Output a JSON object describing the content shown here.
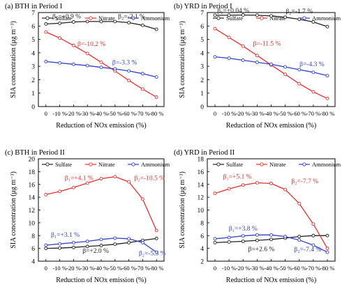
{
  "chart_data": [
    {
      "type": "line",
      "title": "(a) BTH in Period I",
      "xlabel": "Reduction of NOx emission (%)",
      "ylabel": "SIA concentration (μg m⁻³)",
      "categories": [
        "0",
        "-10 %",
        "-20 %",
        "-30 %",
        "-40 %",
        "-50 %",
        "-60 %",
        "-70 %",
        "-80 %"
      ],
      "ylim": [
        0,
        7
      ],
      "yticks": [
        0,
        1,
        2,
        3,
        4,
        5,
        6,
        7
      ],
      "legend": "top",
      "series": [
        {
          "name": "Sulfate",
          "color": "#222222",
          "values": [
            6.15,
            6.2,
            6.3,
            6.33,
            6.33,
            6.33,
            6.25,
            6.05,
            5.75
          ]
        },
        {
          "name": "Nitrate",
          "color": "#e8302c",
          "values": [
            5.55,
            5.1,
            4.55,
            3.95,
            3.3,
            2.65,
            1.95,
            1.3,
            0.7
          ]
        },
        {
          "name": "Ammonium",
          "color": "#3040d0",
          "values": [
            3.35,
            3.25,
            3.15,
            3.05,
            2.92,
            2.8,
            2.65,
            2.45,
            2.2
          ]
        }
      ],
      "annotations": [
        {
          "text": "β₁=+0.9 %",
          "color": "#222222",
          "x": 1.5,
          "y": 6.55
        },
        {
          "text": "β₂=-2.1 %",
          "color": "#222222",
          "x": 6.2,
          "y": 6.55
        },
        {
          "text": "β=-10.2 %",
          "color": "#e8302c",
          "x": 3.3,
          "y": 4.5
        },
        {
          "text": "β=-3.3 %",
          "color": "#3040d0",
          "x": 5.7,
          "y": 3.15
        }
      ]
    },
    {
      "type": "line",
      "title": "(b) YRD in Period I",
      "xlabel": "Reduction of NOx emission (%)",
      "ylabel": "SIA concentration (μg m⁻³)",
      "categories": [
        "0",
        "-10 %",
        "-20 %",
        "-30 %",
        "-40 %",
        "-50 %",
        "-60 %",
        "-70 %",
        "-80 %"
      ],
      "ylim": [
        0,
        7
      ],
      "yticks": [
        0,
        1,
        2,
        3,
        4,
        5,
        6,
        7
      ],
      "legend": "top",
      "series": [
        {
          "name": "Sulfate",
          "color": "#222222",
          "values": [
            6.8,
            6.8,
            6.82,
            6.8,
            6.75,
            6.65,
            6.5,
            6.3,
            5.95
          ]
        },
        {
          "name": "Nitrate",
          "color": "#e8302c",
          "values": [
            5.8,
            5.15,
            4.5,
            3.8,
            3.1,
            2.4,
            1.7,
            1.1,
            0.6
          ]
        },
        {
          "name": "Ammonium",
          "color": "#3040d0",
          "values": [
            3.7,
            3.6,
            3.45,
            3.3,
            3.15,
            2.95,
            2.75,
            2.55,
            2.3
          ]
        }
      ],
      "annotations": [
        {
          "text": "β₁=+0.04 %",
          "color": "#222222",
          "x": 1.3,
          "y": 7.0
        },
        {
          "text": "β₂=-1.7 %",
          "color": "#222222",
          "x": 6.0,
          "y": 6.95
        },
        {
          "text": "β=-11.5 %",
          "color": "#e8302c",
          "x": 3.7,
          "y": 4.55
        },
        {
          "text": "β=-4.3 %",
          "color": "#3040d0",
          "x": 6.9,
          "y": 3.0
        }
      ]
    },
    {
      "type": "line",
      "title": "(c) BTH in Period II",
      "xlabel": "Reduction of NOx emission (%)",
      "ylabel": "SIA concentration (μg m⁻³)",
      "categories": [
        "0",
        "-10 %",
        "-20 %",
        "-30 %",
        "-40 %",
        "-50 %",
        "-60 %",
        "-70 %",
        "-80 %"
      ],
      "ylim": [
        4,
        20
      ],
      "yticks": [
        4,
        6,
        8,
        10,
        12,
        14,
        16,
        18,
        20
      ],
      "legend": "top",
      "series": [
        {
          "name": "Sulfate",
          "color": "#222222",
          "values": [
            6.0,
            6.05,
            6.15,
            6.3,
            6.45,
            6.65,
            6.9,
            7.25,
            7.55
          ]
        },
        {
          "name": "Nitrate",
          "color": "#e8302c",
          "values": [
            14.4,
            14.9,
            15.5,
            16.2,
            16.9,
            17.2,
            16.4,
            13.7,
            8.8
          ]
        },
        {
          "name": "Ammonium",
          "color": "#3040d0",
          "values": [
            6.5,
            6.7,
            6.9,
            7.1,
            7.4,
            7.6,
            7.5,
            6.9,
            5.4
          ]
        }
      ],
      "annotations": [
        {
          "text": "β₁=+4.1 %",
          "color": "#e8302c",
          "x": 2.4,
          "y": 16.7
        },
        {
          "text": "β₂=-10.5 %",
          "color": "#e8302c",
          "x": 7.5,
          "y": 16.7
        },
        {
          "text": "β₁=+3.1 %",
          "color": "#3040d0",
          "x": 1.4,
          "y": 7.8
        },
        {
          "text": "β=+2.0 %",
          "color": "#222222",
          "x": 3.6,
          "y": 5.3
        },
        {
          "text": "β₂=-5.3 %",
          "color": "#3040d0",
          "x": 7.7,
          "y": 4.9
        }
      ]
    },
    {
      "type": "line",
      "title": "(d) YRD in Period II",
      "xlabel": "Reduction of NOx emission (%)",
      "ylabel": "SIA concentration (μg m⁻³)",
      "categories": [
        "0",
        "-10 %",
        "-20 %",
        "-30 %",
        "-40 %",
        "-50 %",
        "-60 %",
        "-70 %",
        "-80 %"
      ],
      "ylim": [
        2,
        18
      ],
      "yticks": [
        2,
        4,
        6,
        8,
        10,
        12,
        14,
        16,
        18
      ],
      "legend": "top",
      "series": [
        {
          "name": "Sulfate",
          "color": "#222222",
          "values": [
            4.9,
            5.0,
            5.1,
            5.25,
            5.4,
            5.6,
            5.85,
            6.0,
            6.0
          ]
        },
        {
          "name": "Nitrate",
          "color": "#e8302c",
          "values": [
            12.6,
            13.3,
            13.9,
            14.25,
            14.15,
            13.2,
            11.0,
            7.8,
            4.0
          ]
        },
        {
          "name": "Ammonium",
          "color": "#3040d0",
          "values": [
            5.5,
            5.7,
            5.95,
            6.1,
            6.1,
            5.85,
            5.3,
            4.5,
            3.4
          ]
        }
      ],
      "annotations": [
        {
          "text": "β₁=+5.1 %",
          "color": "#e8302c",
          "x": 1.6,
          "y": 14.9
        },
        {
          "text": "β₂=-7.7 %",
          "color": "#e8302c",
          "x": 6.4,
          "y": 14.2
        },
        {
          "text": "β₁=+3.8 %",
          "color": "#3040d0",
          "x": 2.0,
          "y": 6.8
        },
        {
          "text": "β=+2.6 %",
          "color": "#222222",
          "x": 3.3,
          "y": 3.6
        },
        {
          "text": "β₂=-7.4 %",
          "color": "#3040d0",
          "x": 6.6,
          "y": 3.5
        }
      ]
    }
  ]
}
